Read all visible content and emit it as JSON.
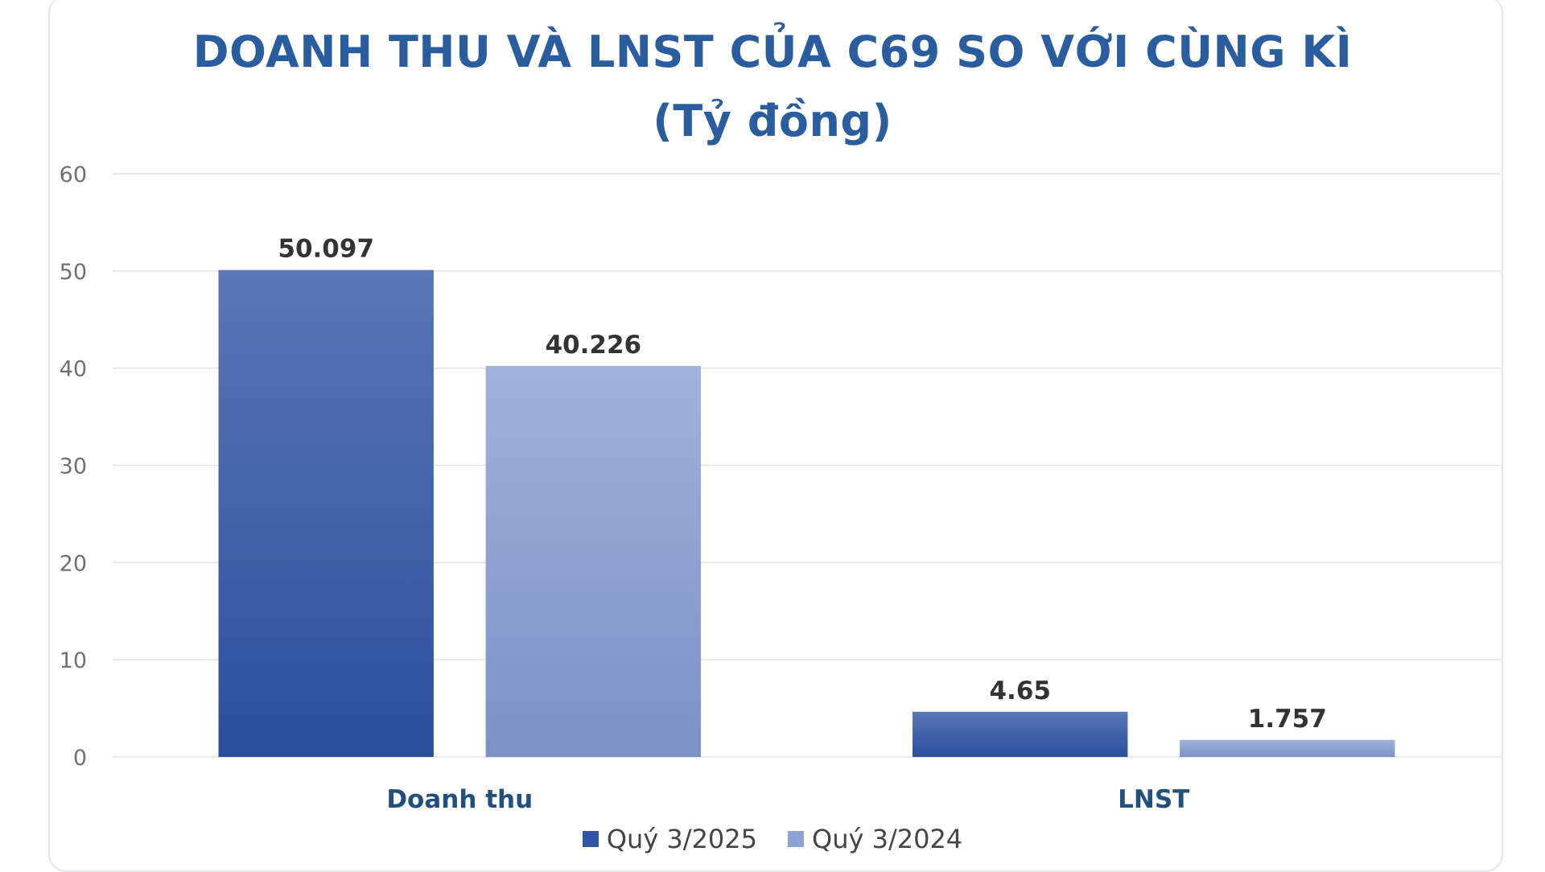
{
  "chart_data": {
    "type": "bar",
    "title": "DOANH THU VÀ LNST CỦA C69 SO VỚI CÙNG KÌ",
    "subtitle": "(Tỷ đồng)",
    "categories": [
      "Doanh thu",
      "LNST"
    ],
    "series": [
      {
        "name": "Quý 3/2025",
        "values": [
          50.097,
          4.65
        ],
        "labels": [
          "50.097",
          "4.65"
        ],
        "color_top": "#5a77b6",
        "color_bottom": "#2a4f9c",
        "legend_color": "#2f55a4"
      },
      {
        "name": "Quý 3/2024",
        "values": [
          40.226,
          1.757
        ],
        "labels": [
          "40.226",
          "1.757"
        ],
        "color_top": "#a0b1db",
        "color_bottom": "#7d91c8",
        "legend_color": "#8ea2d4"
      }
    ],
    "y_ticks": [
      0,
      10,
      20,
      30,
      40,
      50,
      60
    ],
    "ylim": [
      0,
      60
    ],
    "grid": true,
    "legend_position": "bottom-center"
  },
  "colors": {
    "title": "#2a5d9f",
    "category_label": "#22507e",
    "gridline": "#e2e2e2"
  }
}
